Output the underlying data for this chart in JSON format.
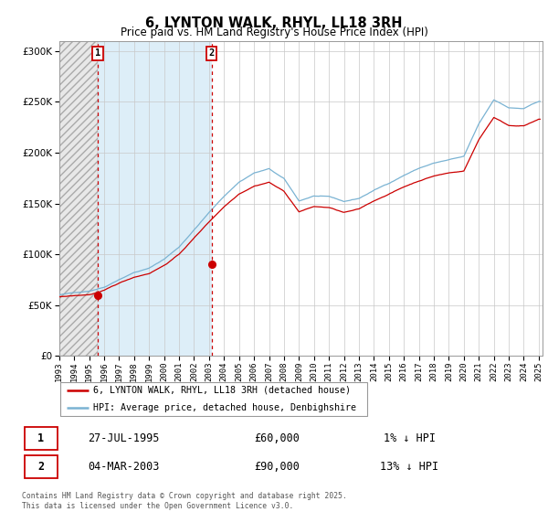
{
  "title": "6, LYNTON WALK, RHYL, LL18 3RH",
  "subtitle": "Price paid vs. HM Land Registry's House Price Index (HPI)",
  "ylim": [
    0,
    310000
  ],
  "yticks": [
    0,
    50000,
    100000,
    150000,
    200000,
    250000,
    300000
  ],
  "ytick_labels": [
    "£0",
    "£50K",
    "£100K",
    "£150K",
    "£200K",
    "£250K",
    "£300K"
  ],
  "hpi_color": "#7ab3d3",
  "price_color": "#cc0000",
  "vline_color": "#cc0000",
  "annotation_box_color": "#cc0000",
  "grid_color": "#c8c8c8",
  "legend1_label": "6, LYNTON WALK, RHYL, LL18 3RH (detached house)",
  "legend2_label": "HPI: Average price, detached house, Denbighshire",
  "sale1_label": "1",
  "sale1_date": "27-JUL-1995",
  "sale1_price": "£60,000",
  "sale1_hpi": "1% ↓ HPI",
  "sale1_year": 1995.57,
  "sale1_value": 60000,
  "sale2_label": "2",
  "sale2_date": "04-MAR-2003",
  "sale2_price": "£90,000",
  "sale2_hpi": "13% ↓ HPI",
  "sale2_year": 2003.17,
  "sale2_value": 90000,
  "copyright_text": "Contains HM Land Registry data © Crown copyright and database right 2025.\nThis data is licensed under the Open Government Licence v3.0.",
  "xlim_min": 1993.0,
  "xlim_max": 2025.25,
  "hatch_region1_color": "#e0e0e0",
  "between_sales_color": "#ddeef8",
  "title_fontsize": 10.5,
  "subtitle_fontsize": 8.5
}
